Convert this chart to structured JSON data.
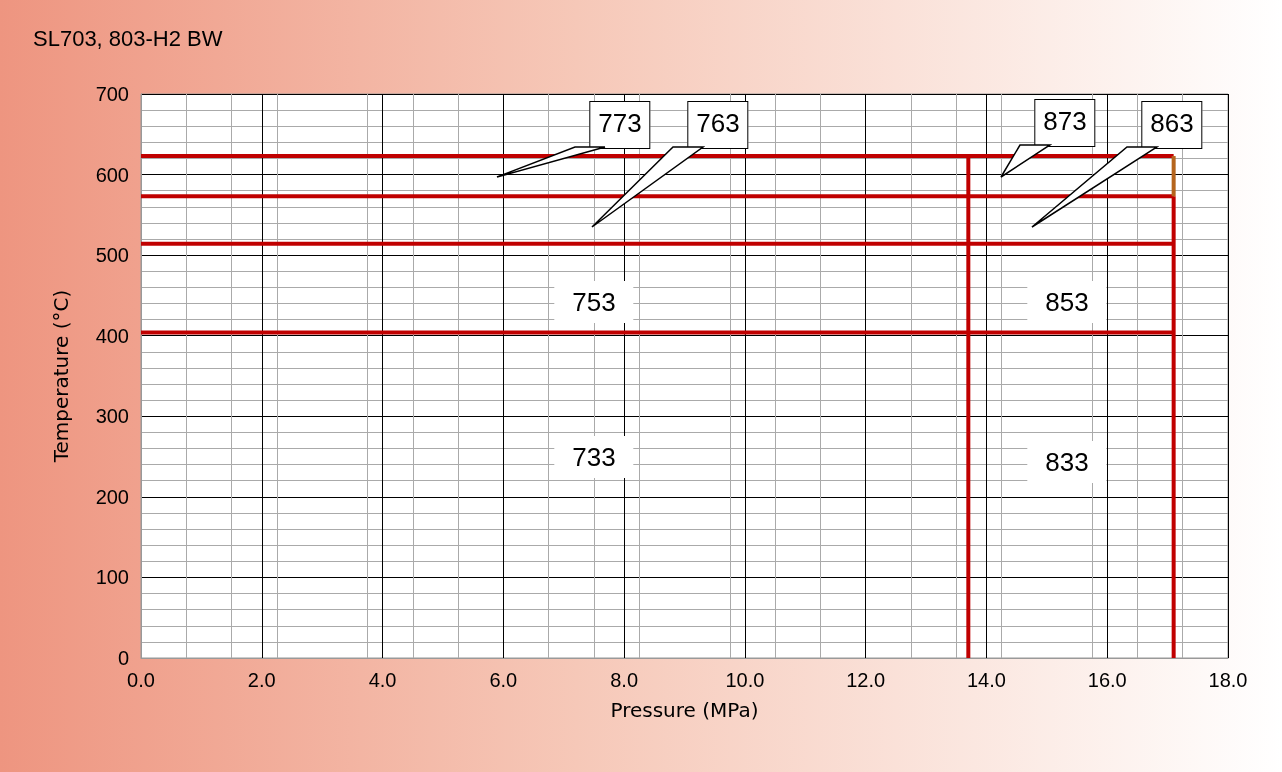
{
  "chart_data": {
    "type": "line",
    "title": "SL703, 803-H2 BW",
    "xlabel": "Pressure (MPa)",
    "ylabel": "Temperature (°C)",
    "xlim": [
      0,
      18
    ],
    "ylim": [
      0,
      700
    ],
    "xticks": [
      {
        "value": 0,
        "label": "0.0"
      },
      {
        "value": 2,
        "label": "2.0"
      },
      {
        "value": 4,
        "label": "4.0"
      },
      {
        "value": 6,
        "label": "6.0"
      },
      {
        "value": 8,
        "label": "8.0"
      },
      {
        "value": 10,
        "label": "10.0"
      },
      {
        "value": 12,
        "label": "12.0"
      },
      {
        "value": 14,
        "label": "14.0"
      },
      {
        "value": 16,
        "label": "16.0"
      },
      {
        "value": 18,
        "label": "18.0"
      }
    ],
    "yticks": [
      0,
      100,
      200,
      300,
      400,
      500,
      600,
      700
    ],
    "grid": true,
    "marker": "none",
    "line_style": "solid",
    "series": [
      {
        "color": "#c00000",
        "x": [
          0,
          17.1
        ],
        "values": [
          623,
          623
        ]
      },
      {
        "color": "#c00000",
        "x": [
          0,
          17.1
        ],
        "values": [
          573,
          573
        ]
      },
      {
        "color": "#c00000",
        "x": [
          0,
          17.1
        ],
        "values": [
          514,
          514
        ]
      },
      {
        "color": "#c00000",
        "x": [
          0,
          17.1
        ],
        "values": [
          404,
          404
        ]
      },
      {
        "color": "#c00000",
        "x": [
          13.7,
          13.7
        ],
        "values": [
          0,
          623
        ]
      },
      {
        "color": "#c00000",
        "x": [
          17.1,
          17.1
        ],
        "values": [
          0,
          573
        ]
      },
      {
        "color": "#b5651d",
        "x": [
          17.1,
          17.1
        ],
        "values": [
          573,
          623
        ]
      }
    ],
    "annotations": [
      "773",
      "763",
      "873",
      "863",
      "753",
      "853",
      "733",
      "833"
    ]
  }
}
